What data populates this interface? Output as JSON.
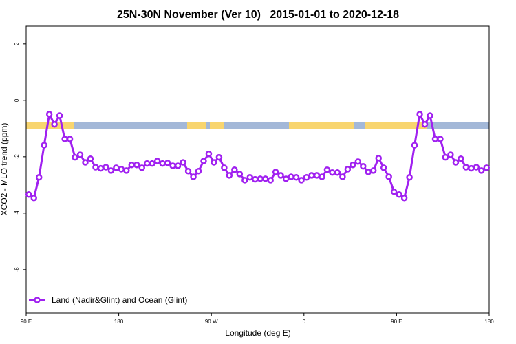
{
  "chart_data": {
    "type": "line",
    "title": "25N-30N November (Ver 10)   2015-01-01 to 2020-12-18",
    "xlabel": "Longitude (deg E)",
    "ylabel": "XCO2 - MLO trend (ppm)",
    "xlim": [
      90,
      540
    ],
    "xticks": [
      {
        "value": 90,
        "label": "90 E"
      },
      180,
      {
        "value": 270,
        "label": "90 W"
      },
      {
        "value": 360,
        "label": "0"
      },
      {
        "value": 450,
        "label": "90 E"
      },
      {
        "value": 540,
        "label": "180"
      }
    ],
    "ylim": [
      -7.54,
      2.63
    ],
    "yticks": [
      2,
      0,
      -2,
      -4,
      -6
    ],
    "legend": "bottomleft",
    "x": [
      92.5,
      97.5,
      102.5,
      107.5,
      112.5,
      117.5,
      122.5,
      127.5,
      132.5,
      137.5,
      142.5,
      147.5,
      152.5,
      157.5,
      162.5,
      167.5,
      172.5,
      177.5,
      182.5,
      187.5,
      192.5,
      197.5,
      202.5,
      207.5,
      212.5,
      217.5,
      222.5,
      227.5,
      232.5,
      237.5,
      242.5,
      247.5,
      252.5,
      257.5,
      262.5,
      267.5,
      272.5,
      277.5,
      282.5,
      287.5,
      292.5,
      297.5,
      302.5,
      307.5,
      312.5,
      317.5,
      322.5,
      327.5,
      332.5,
      337.5,
      342.5,
      347.5,
      352.5,
      357.5,
      362.5,
      367.5,
      372.5,
      377.5,
      382.5,
      387.5,
      392.5,
      397.5,
      402.5,
      407.5,
      412.5,
      417.5,
      422.5,
      427.5,
      432.5,
      437.5,
      442.5,
      447.5,
      452.5,
      457.5,
      462.5,
      467.5,
      472.5,
      477.5,
      482.5,
      487.5,
      492.5,
      497.5,
      502.5,
      507.5,
      512.5,
      517.5,
      522.5,
      527.5,
      532.5,
      537.5
    ],
    "series": [
      {
        "name": "Land (Nadir&Glint) and Ocean (Glint)",
        "color": "#a020f0",
        "values": [
          -3.34,
          -3.46,
          -2.73,
          -1.59,
          -0.49,
          -0.85,
          -0.54,
          -1.37,
          -1.37,
          -2.02,
          -1.93,
          -2.2,
          -2.07,
          -2.37,
          -2.41,
          -2.37,
          -2.49,
          -2.39,
          -2.44,
          -2.49,
          -2.29,
          -2.29,
          -2.39,
          -2.24,
          -2.24,
          -2.15,
          -2.24,
          -2.22,
          -2.32,
          -2.32,
          -2.2,
          -2.51,
          -2.71,
          -2.51,
          -2.15,
          -1.9,
          -2.2,
          -2.02,
          -2.39,
          -2.66,
          -2.46,
          -2.61,
          -2.83,
          -2.73,
          -2.8,
          -2.78,
          -2.78,
          -2.83,
          -2.54,
          -2.66,
          -2.78,
          -2.71,
          -2.73,
          -2.83,
          -2.73,
          -2.66,
          -2.66,
          -2.71,
          -2.46,
          -2.56,
          -2.56,
          -2.71,
          -2.44,
          -2.29,
          -2.17,
          -2.34,
          -2.54,
          -2.49,
          -2.05,
          -2.39,
          -2.71,
          -3.24,
          -3.34,
          -3.46,
          -2.73,
          -1.59,
          -0.49,
          -0.85,
          -0.54,
          -1.37,
          -1.37,
          -2.02,
          -1.93,
          -2.2,
          -2.07,
          -2.37,
          -2.41,
          -2.37,
          -2.49,
          -2.39
        ]
      }
    ]
  }
}
